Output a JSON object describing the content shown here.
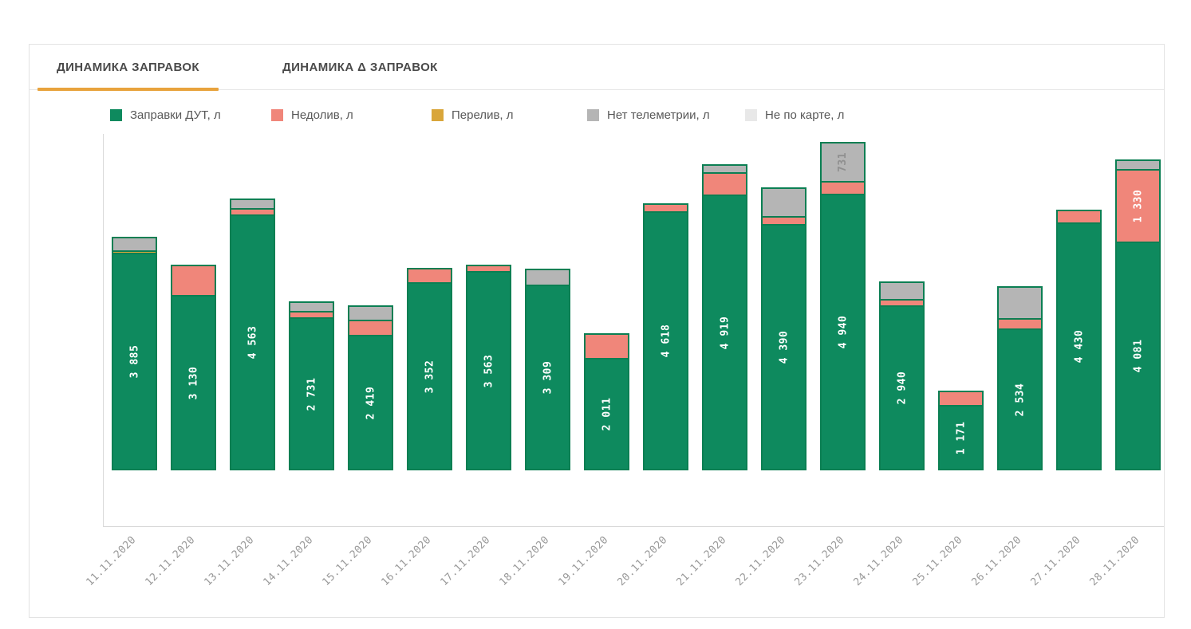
{
  "tabs": [
    {
      "label": "ДИНАМИКА ЗАПРАВОК",
      "active": true
    },
    {
      "label": "ДИНАМИКА Δ ЗАПРАВОК",
      "active": false
    }
  ],
  "colors": {
    "tab_underline": "#e8a33d",
    "tab_text": "#4a4a4a",
    "legend_text": "#595959",
    "segment_border": "#0b7f53",
    "axis_line": "#d9d9d9",
    "date_label": "#999999",
    "panel_border": "#e3e3e3"
  },
  "chart_data": {
    "type": "bar",
    "stacked": true,
    "legend_position": "top",
    "grid": false,
    "ylim": [
      0,
      6000
    ],
    "number_format": "space-thousands",
    "value_label_min_for_secondary_series": 700,
    "categories": [
      "11.11.2020",
      "12.11.2020",
      "13.11.2020",
      "14.11.2020",
      "15.11.2020",
      "16.11.2020",
      "17.11.2020",
      "18.11.2020",
      "19.11.2020",
      "20.11.2020",
      "21.11.2020",
      "22.11.2020",
      "23.11.2020",
      "24.11.2020",
      "25.11.2020",
      "26.11.2020",
      "27.11.2020",
      "28.11.2020"
    ],
    "series": [
      {
        "name": "Заправки ДУТ, л",
        "color": "#0e8a5e",
        "label_color": "#ffffff",
        "values": [
          3885,
          3130,
          4563,
          2731,
          2419,
          3352,
          3563,
          3309,
          2011,
          4618,
          4919,
          4390,
          4940,
          2940,
          1171,
          2534,
          4430,
          4081
        ]
      },
      {
        "name": "Недолив, л",
        "color": "#f0867a",
        "label_color": "#ffffff",
        "values": [
          0,
          570,
          140,
          140,
          300,
          285,
          140,
          0,
          470,
          170,
          430,
          170,
          260,
          140,
          285,
          215,
          260,
          1330
        ]
      },
      {
        "name": "Перелив, л",
        "color": "#d9a63a",
        "label_color": "#ffffff",
        "values": [
          60,
          0,
          0,
          0,
          0,
          0,
          0,
          0,
          0,
          0,
          0,
          0,
          0,
          0,
          0,
          0,
          0,
          0
        ]
      },
      {
        "name": "Нет телеметрии, л",
        "color": "#b5b5b5",
        "label_color": "#8f8f8f",
        "values": [
          270,
          0,
          200,
          200,
          285,
          0,
          0,
          310,
          0,
          0,
          170,
          540,
          731,
          340,
          0,
          600,
          0,
          200
        ]
      },
      {
        "name": "Не по карте, л",
        "color": "#e8e8e8",
        "label_color": "#8f8f8f",
        "values": [
          0,
          0,
          0,
          0,
          0,
          0,
          0,
          0,
          0,
          0,
          0,
          0,
          0,
          0,
          0,
          0,
          0,
          0
        ]
      }
    ],
    "labeled_values_visible": {
      "green_labels": "on every bar",
      "gray_label_23_11": 731,
      "pink_label_28_11": 1330
    }
  }
}
